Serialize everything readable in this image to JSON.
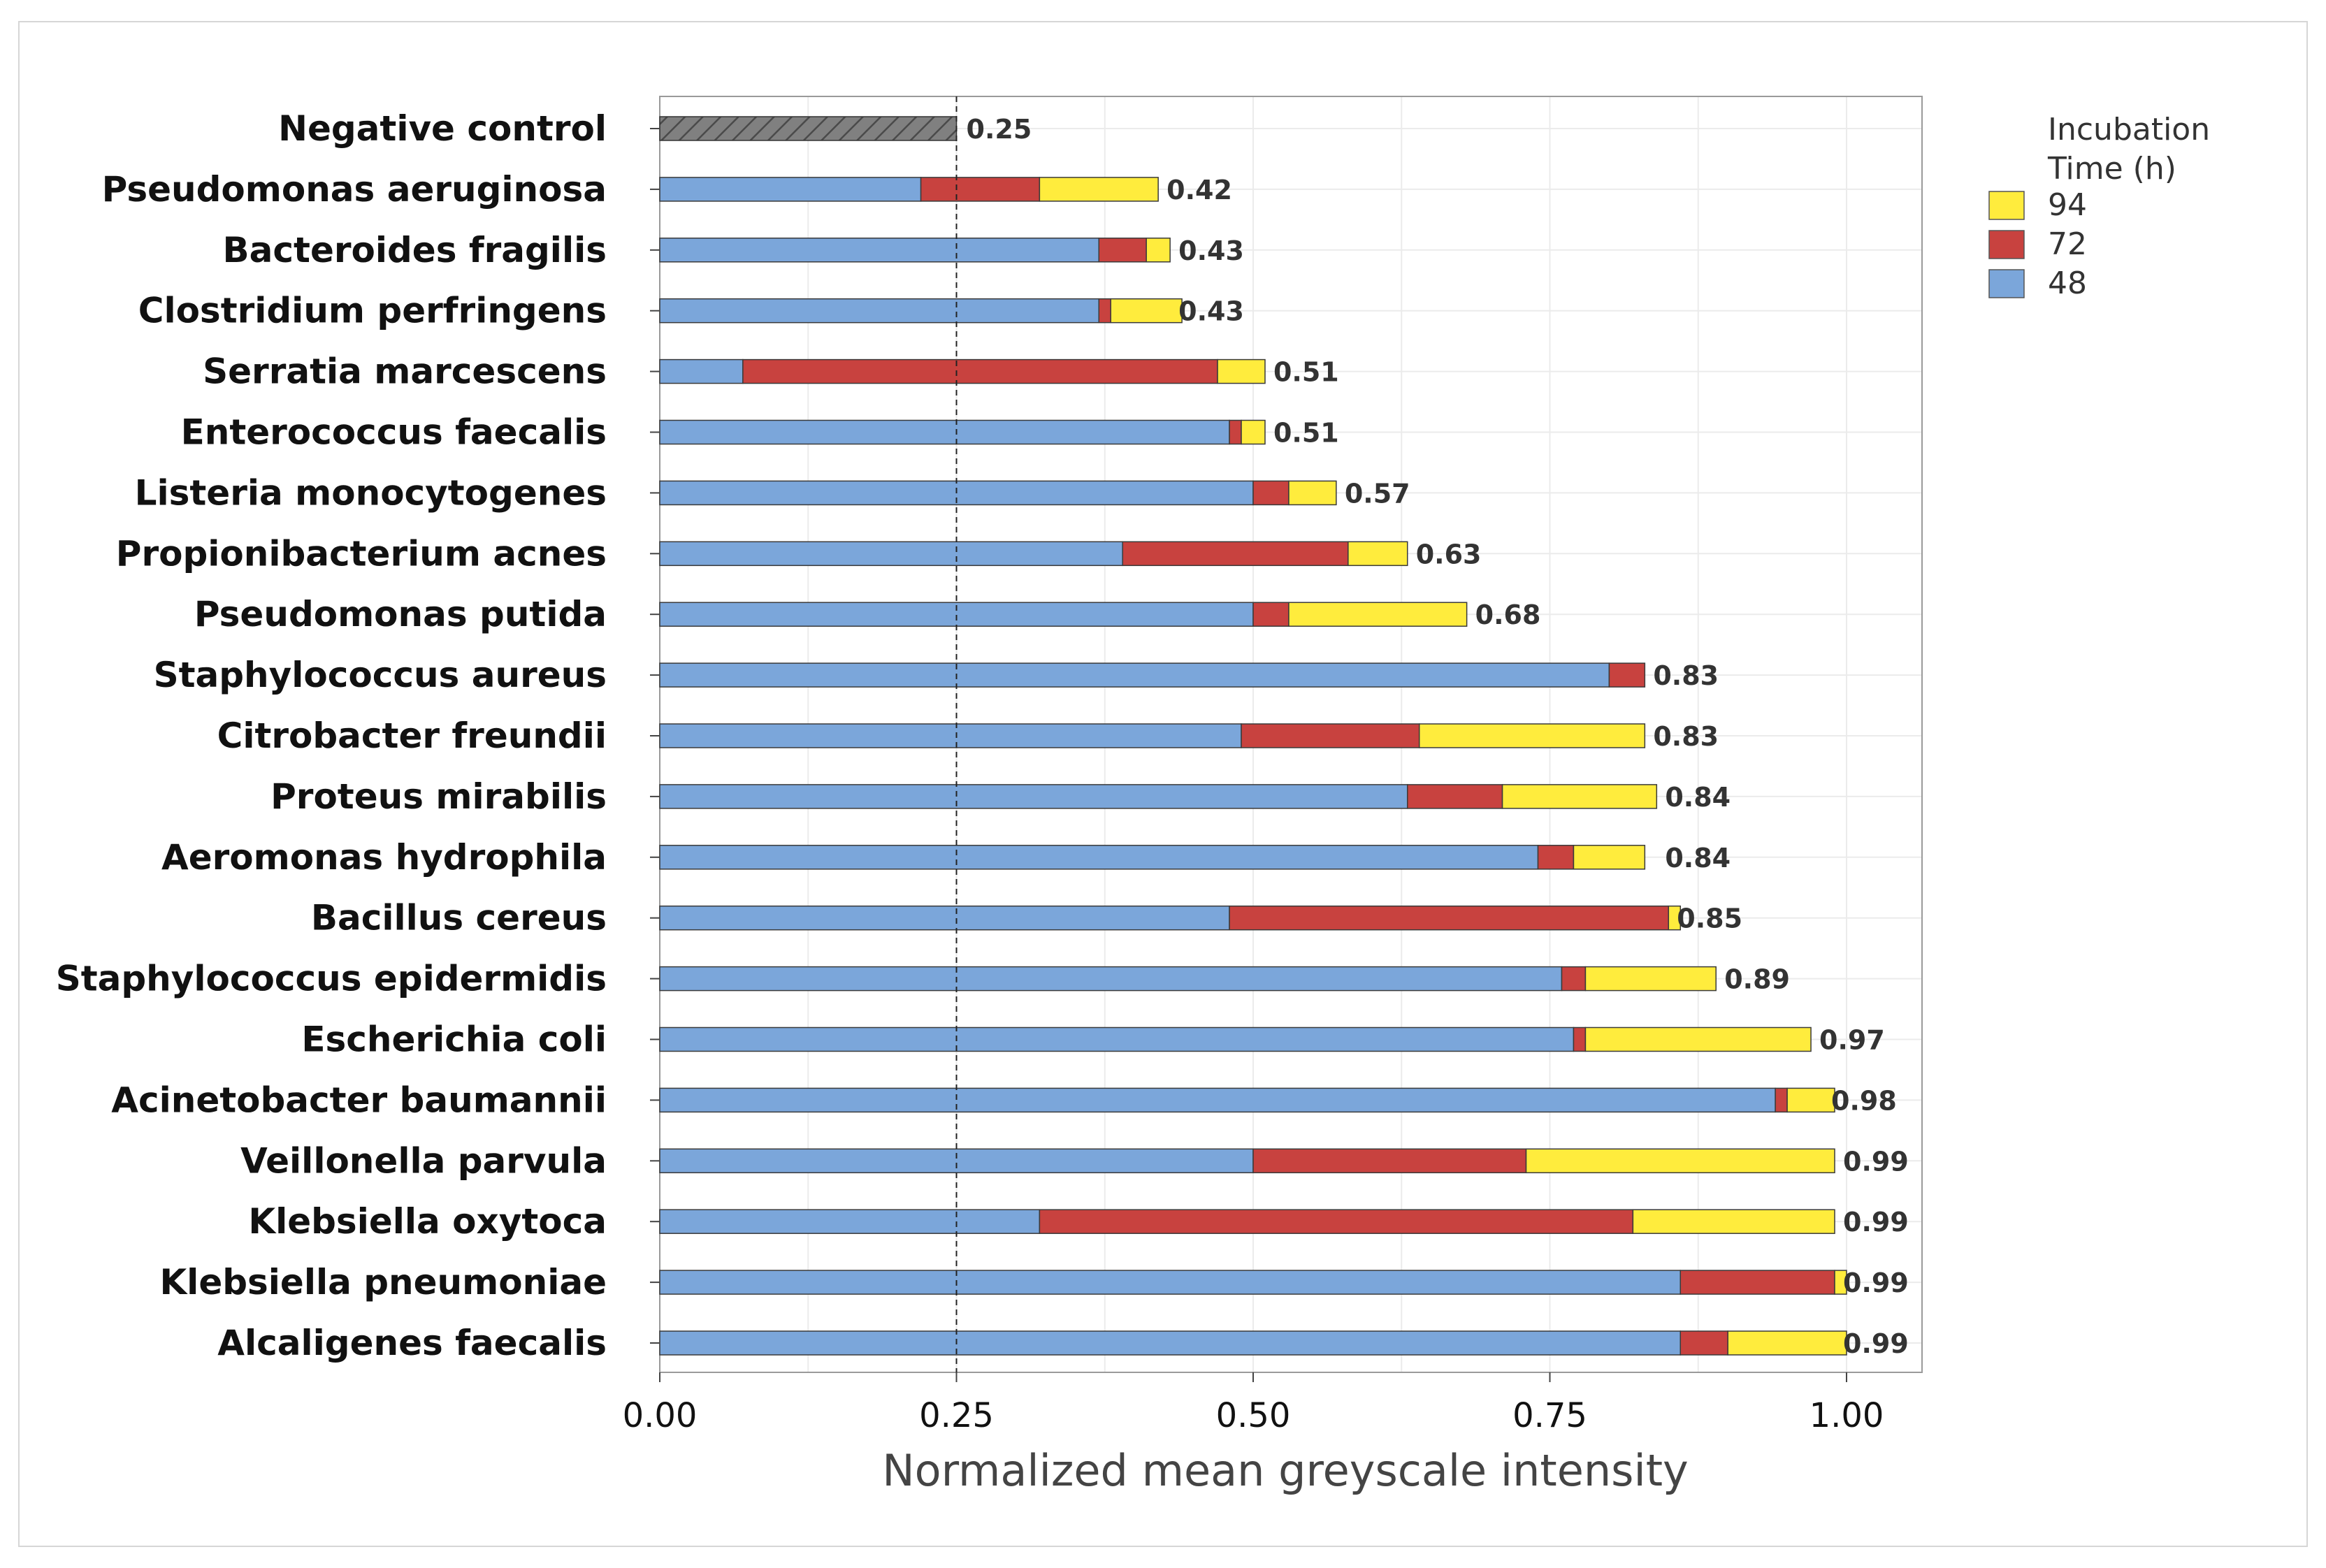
{
  "chart_data": {
    "type": "bar",
    "orientation": "horizontal",
    "stacked": true,
    "title": "",
    "xlabel": "Normalized mean greyscale intensity",
    "ylabel": "",
    "xlim": [
      0,
      1.06
    ],
    "x_ticks": [
      "0.00",
      "0.25",
      "0.50",
      "0.75",
      "1.00"
    ],
    "reference_line": {
      "x": 0.25,
      "style": "dashed"
    },
    "legend": {
      "title": "Incubation Time (h)",
      "placement": "top-right",
      "entries": [
        {
          "label": "94",
          "color": "#FFEC3D"
        },
        {
          "label": "72",
          "color": "#C8423F"
        },
        {
          "label": "48",
          "color": "#7BA6DA"
        }
      ]
    },
    "control": {
      "name": "Negative control",
      "value": 0.25,
      "label": "0.25",
      "color": "#808080",
      "pattern": "hatched"
    },
    "categories": [
      "Pseudomonas aeruginosa",
      "Bacteroides fragilis",
      "Clostridium perfringens",
      "Serratia marcescens",
      "Enterococcus faecalis",
      "Listeria monocytogenes",
      "Propionibacterium acnes",
      "Pseudomonas putida",
      "Staphylococcus aureus",
      "Citrobacter freundii",
      "Proteus mirabilis",
      "Aeromonas hydrophila",
      "Bacillus cereus",
      "Staphylococcus epidermidis",
      "Escherichia coli",
      "Acinetobacter baumannii",
      "Veillonella parvula",
      "Klebsiella oxytoca",
      "Klebsiella pneumoniae",
      "Alcaligenes faecalis"
    ],
    "series": [
      {
        "name": "48",
        "color": "#7BA6DA",
        "values": [
          0.22,
          0.37,
          0.37,
          0.07,
          0.48,
          0.5,
          0.39,
          0.5,
          0.8,
          0.49,
          0.63,
          0.74,
          0.48,
          0.76,
          0.77,
          0.94,
          0.5,
          0.32,
          0.86,
          0.86
        ]
      },
      {
        "name": "72",
        "color": "#C8423F",
        "values": [
          0.1,
          0.04,
          0.01,
          0.4,
          0.01,
          0.03,
          0.19,
          0.03,
          0.03,
          0.15,
          0.08,
          0.03,
          0.37,
          0.02,
          0.01,
          0.01,
          0.23,
          0.5,
          0.13,
          0.04
        ]
      },
      {
        "name": "94",
        "color": "#FFEC3D",
        "values": [
          0.1,
          0.02,
          0.06,
          0.04,
          0.02,
          0.04,
          0.05,
          0.15,
          0.0,
          0.19,
          0.13,
          0.06,
          0.01,
          0.11,
          0.19,
          0.04,
          0.26,
          0.17,
          0.01,
          0.1
        ]
      }
    ],
    "totals": [
      0.42,
      0.43,
      0.43,
      0.51,
      0.51,
      0.57,
      0.63,
      0.68,
      0.83,
      0.83,
      0.84,
      0.84,
      0.85,
      0.89,
      0.97,
      0.98,
      0.99,
      0.99,
      0.99,
      0.99
    ],
    "total_labels": [
      "0.42",
      "0.43",
      "0.43",
      "0.51",
      "0.51",
      "0.57",
      "0.63",
      "0.68",
      "0.83",
      "0.83",
      "0.84",
      "0.84",
      "0.85",
      "0.89",
      "0.97",
      "0.98",
      "0.99",
      "0.99",
      "0.99",
      "0.99"
    ]
  }
}
